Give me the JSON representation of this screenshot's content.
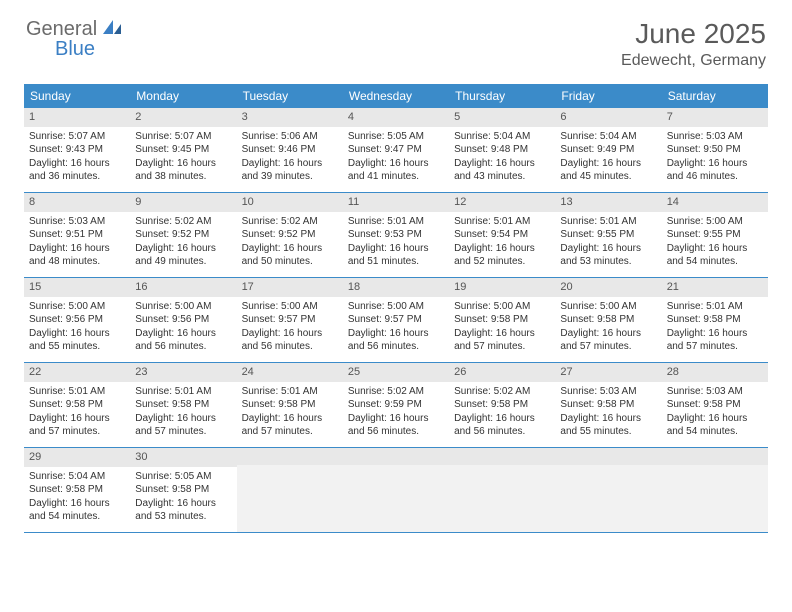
{
  "logo": {
    "text1": "General",
    "text2": "Blue"
  },
  "title": "June 2025",
  "location": "Edewecht, Germany",
  "colors": {
    "header_bg": "#3b8bc9",
    "header_text": "#ffffff",
    "daynum_bg": "#e8e8e8",
    "body_text": "#333333",
    "border": "#3b8bc9",
    "empty_bg": "#f2f2f2"
  },
  "weekdays": [
    "Sunday",
    "Monday",
    "Tuesday",
    "Wednesday",
    "Thursday",
    "Friday",
    "Saturday"
  ],
  "weeks": [
    [
      {
        "n": "1",
        "sr": "Sunrise: 5:07 AM",
        "ss": "Sunset: 9:43 PM",
        "d1": "Daylight: 16 hours",
        "d2": "and 36 minutes."
      },
      {
        "n": "2",
        "sr": "Sunrise: 5:07 AM",
        "ss": "Sunset: 9:45 PM",
        "d1": "Daylight: 16 hours",
        "d2": "and 38 minutes."
      },
      {
        "n": "3",
        "sr": "Sunrise: 5:06 AM",
        "ss": "Sunset: 9:46 PM",
        "d1": "Daylight: 16 hours",
        "d2": "and 39 minutes."
      },
      {
        "n": "4",
        "sr": "Sunrise: 5:05 AM",
        "ss": "Sunset: 9:47 PM",
        "d1": "Daylight: 16 hours",
        "d2": "and 41 minutes."
      },
      {
        "n": "5",
        "sr": "Sunrise: 5:04 AM",
        "ss": "Sunset: 9:48 PM",
        "d1": "Daylight: 16 hours",
        "d2": "and 43 minutes."
      },
      {
        "n": "6",
        "sr": "Sunrise: 5:04 AM",
        "ss": "Sunset: 9:49 PM",
        "d1": "Daylight: 16 hours",
        "d2": "and 45 minutes."
      },
      {
        "n": "7",
        "sr": "Sunrise: 5:03 AM",
        "ss": "Sunset: 9:50 PM",
        "d1": "Daylight: 16 hours",
        "d2": "and 46 minutes."
      }
    ],
    [
      {
        "n": "8",
        "sr": "Sunrise: 5:03 AM",
        "ss": "Sunset: 9:51 PM",
        "d1": "Daylight: 16 hours",
        "d2": "and 48 minutes."
      },
      {
        "n": "9",
        "sr": "Sunrise: 5:02 AM",
        "ss": "Sunset: 9:52 PM",
        "d1": "Daylight: 16 hours",
        "d2": "and 49 minutes."
      },
      {
        "n": "10",
        "sr": "Sunrise: 5:02 AM",
        "ss": "Sunset: 9:52 PM",
        "d1": "Daylight: 16 hours",
        "d2": "and 50 minutes."
      },
      {
        "n": "11",
        "sr": "Sunrise: 5:01 AM",
        "ss": "Sunset: 9:53 PM",
        "d1": "Daylight: 16 hours",
        "d2": "and 51 minutes."
      },
      {
        "n": "12",
        "sr": "Sunrise: 5:01 AM",
        "ss": "Sunset: 9:54 PM",
        "d1": "Daylight: 16 hours",
        "d2": "and 52 minutes."
      },
      {
        "n": "13",
        "sr": "Sunrise: 5:01 AM",
        "ss": "Sunset: 9:55 PM",
        "d1": "Daylight: 16 hours",
        "d2": "and 53 minutes."
      },
      {
        "n": "14",
        "sr": "Sunrise: 5:00 AM",
        "ss": "Sunset: 9:55 PM",
        "d1": "Daylight: 16 hours",
        "d2": "and 54 minutes."
      }
    ],
    [
      {
        "n": "15",
        "sr": "Sunrise: 5:00 AM",
        "ss": "Sunset: 9:56 PM",
        "d1": "Daylight: 16 hours",
        "d2": "and 55 minutes."
      },
      {
        "n": "16",
        "sr": "Sunrise: 5:00 AM",
        "ss": "Sunset: 9:56 PM",
        "d1": "Daylight: 16 hours",
        "d2": "and 56 minutes."
      },
      {
        "n": "17",
        "sr": "Sunrise: 5:00 AM",
        "ss": "Sunset: 9:57 PM",
        "d1": "Daylight: 16 hours",
        "d2": "and 56 minutes."
      },
      {
        "n": "18",
        "sr": "Sunrise: 5:00 AM",
        "ss": "Sunset: 9:57 PM",
        "d1": "Daylight: 16 hours",
        "d2": "and 56 minutes."
      },
      {
        "n": "19",
        "sr": "Sunrise: 5:00 AM",
        "ss": "Sunset: 9:58 PM",
        "d1": "Daylight: 16 hours",
        "d2": "and 57 minutes."
      },
      {
        "n": "20",
        "sr": "Sunrise: 5:00 AM",
        "ss": "Sunset: 9:58 PM",
        "d1": "Daylight: 16 hours",
        "d2": "and 57 minutes."
      },
      {
        "n": "21",
        "sr": "Sunrise: 5:01 AM",
        "ss": "Sunset: 9:58 PM",
        "d1": "Daylight: 16 hours",
        "d2": "and 57 minutes."
      }
    ],
    [
      {
        "n": "22",
        "sr": "Sunrise: 5:01 AM",
        "ss": "Sunset: 9:58 PM",
        "d1": "Daylight: 16 hours",
        "d2": "and 57 minutes."
      },
      {
        "n": "23",
        "sr": "Sunrise: 5:01 AM",
        "ss": "Sunset: 9:58 PM",
        "d1": "Daylight: 16 hours",
        "d2": "and 57 minutes."
      },
      {
        "n": "24",
        "sr": "Sunrise: 5:01 AM",
        "ss": "Sunset: 9:58 PM",
        "d1": "Daylight: 16 hours",
        "d2": "and 57 minutes."
      },
      {
        "n": "25",
        "sr": "Sunrise: 5:02 AM",
        "ss": "Sunset: 9:59 PM",
        "d1": "Daylight: 16 hours",
        "d2": "and 56 minutes."
      },
      {
        "n": "26",
        "sr": "Sunrise: 5:02 AM",
        "ss": "Sunset: 9:58 PM",
        "d1": "Daylight: 16 hours",
        "d2": "and 56 minutes."
      },
      {
        "n": "27",
        "sr": "Sunrise: 5:03 AM",
        "ss": "Sunset: 9:58 PM",
        "d1": "Daylight: 16 hours",
        "d2": "and 55 minutes."
      },
      {
        "n": "28",
        "sr": "Sunrise: 5:03 AM",
        "ss": "Sunset: 9:58 PM",
        "d1": "Daylight: 16 hours",
        "d2": "and 54 minutes."
      }
    ],
    [
      {
        "n": "29",
        "sr": "Sunrise: 5:04 AM",
        "ss": "Sunset: 9:58 PM",
        "d1": "Daylight: 16 hours",
        "d2": "and 54 minutes."
      },
      {
        "n": "30",
        "sr": "Sunrise: 5:05 AM",
        "ss": "Sunset: 9:58 PM",
        "d1": "Daylight: 16 hours",
        "d2": "and 53 minutes."
      },
      null,
      null,
      null,
      null,
      null
    ]
  ]
}
